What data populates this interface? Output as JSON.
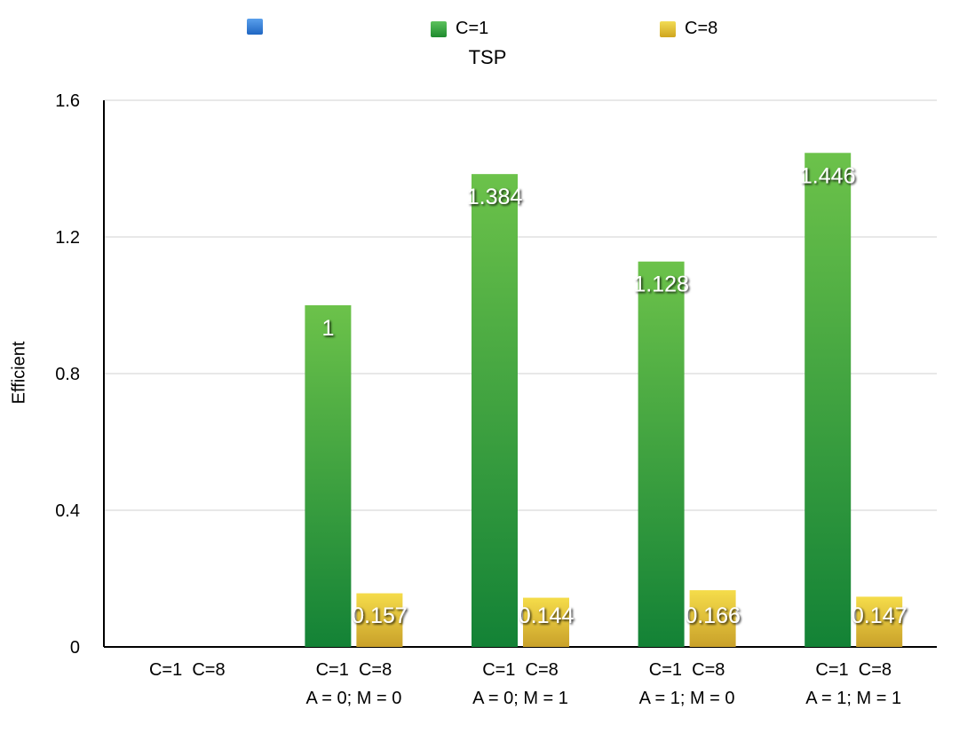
{
  "chart_data": {
    "type": "bar",
    "title": "TSP",
    "xlabel": "",
    "ylabel": "Efficient",
    "ylim": [
      0,
      1.6
    ],
    "yticks": [
      "0",
      "0.4",
      "0.8",
      "1.2",
      "1.6"
    ],
    "grid": true,
    "legend_position": "top",
    "categories": [
      {
        "line1": "C=1  C=8",
        "line2": ""
      },
      {
        "line1": "C=1  C=8",
        "line2": "A = 0; M = 0"
      },
      {
        "line1": "C=1  C=8",
        "line2": "A = 0; M = 1"
      },
      {
        "line1": "C=1  C=8",
        "line2": "A = 1; M = 0"
      },
      {
        "line1": "C=1  C=8",
        "line2": "A = 1; M = 1"
      }
    ],
    "series": [
      {
        "name": "",
        "color": "#2f7fd8",
        "values": [
          null,
          null,
          null,
          null,
          null
        ],
        "labels": [
          "",
          "",
          "",
          "",
          ""
        ]
      },
      {
        "name": "C=1",
        "color": "#3aa63a",
        "values": [
          null,
          1,
          1.384,
          1.128,
          1.446
        ],
        "labels": [
          "",
          "1",
          "1.384",
          "1.128",
          "1.446"
        ]
      },
      {
        "name": "C=8",
        "color": "#e6c630",
        "values": [
          null,
          0.157,
          0.144,
          0.166,
          0.147
        ],
        "labels": [
          "",
          "0.157",
          "0.144",
          "0.166",
          "0.147"
        ]
      }
    ]
  }
}
